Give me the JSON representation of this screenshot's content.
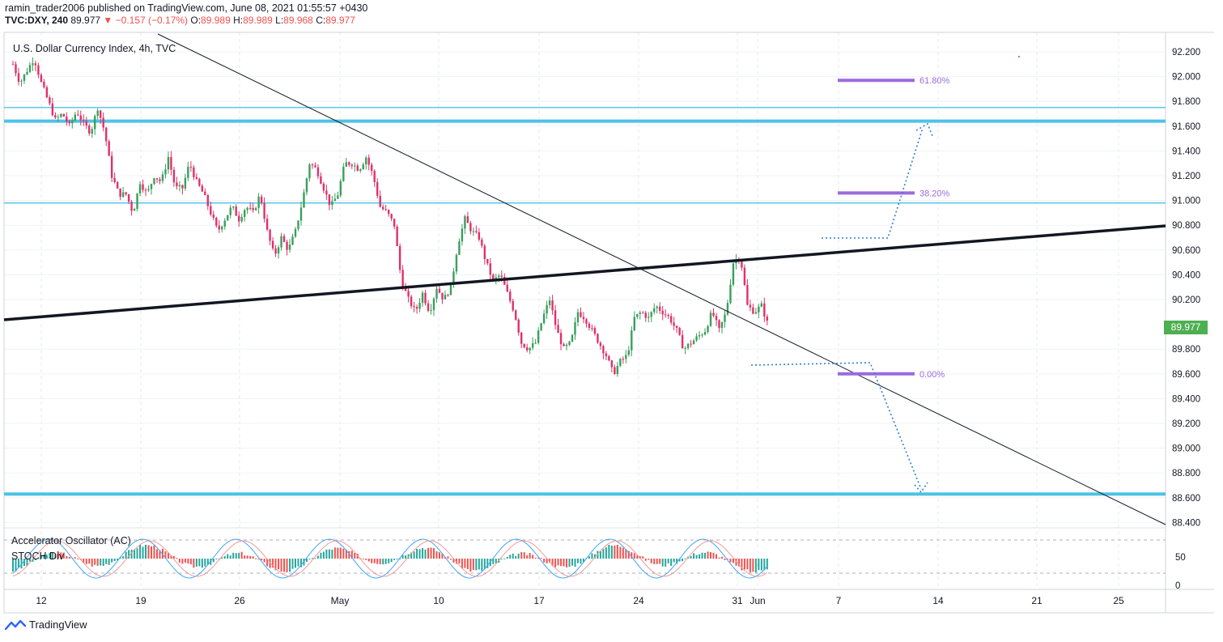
{
  "header": {
    "published_line": "ramin_trader2006 published on TradingView.com, June 08, 2021 01:55:57 +0430",
    "symbol": "TVC:DXY, 240",
    "last": "89.977",
    "change": "▼ −0.157 (−0.17%)",
    "o_label": "O:",
    "o": "89.989",
    "h_label": "H:",
    "h": "89.989",
    "l_label": "L:",
    "l": "89.968",
    "c_label": "C:",
    "c": "89.977"
  },
  "symbol_title": "U.S. Dollar Currency Index, 4h, TVC",
  "last_price_tag": "89.977",
  "indicators": {
    "ac_label": "Accelerator Oscillator (AC)",
    "stoch_label": "STOCH Div"
  },
  "footer": {
    "brand": "TradingView"
  },
  "colors": {
    "up": "#26a69a",
    "down": "#ef5350",
    "candle_up": "#3a9f5b",
    "candle_down": "#e0306a",
    "hline": "#4cc3e6",
    "fib": "#9c6ade",
    "path": "#2f7fd1",
    "price_tag": "#4caf50"
  },
  "chart_data": {
    "type": "candlestick",
    "y_axis_ticks": [
      "92.200",
      "92.000",
      "91.800",
      "91.600",
      "91.400",
      "91.200",
      "91.000",
      "90.800",
      "90.600",
      "90.400",
      "90.200",
      "89.800",
      "89.600",
      "89.400",
      "89.200",
      "89.000",
      "88.800",
      "88.600",
      "88.400"
    ],
    "x_axis_ticks": [
      "12",
      "19",
      "26",
      "May",
      "10",
      "17",
      "24",
      "31",
      "Jun",
      "7",
      "14",
      "21",
      "25"
    ],
    "ylim": [
      88.35,
      92.35
    ],
    "indicator_ticks": [
      "50",
      "0"
    ],
    "horizontal_levels": [
      91.75,
      91.64,
      90.98,
      88.63
    ],
    "fibonacci": [
      {
        "label": "61.80%",
        "value": 91.97
      },
      {
        "label": "38.20%",
        "value": 91.06
      },
      {
        "label": "0.00%",
        "value": 89.6
      }
    ],
    "close_path": [
      [
        12,
        92.1
      ],
      [
        12.5,
        91.95
      ],
      [
        13,
        92.05
      ],
      [
        13.5,
        92.15
      ],
      [
        14,
        91.95
      ],
      [
        14.5,
        91.8
      ],
      [
        15,
        91.65
      ],
      [
        15.5,
        91.7
      ],
      [
        16,
        91.6
      ],
      [
        16.5,
        91.72
      ],
      [
        17,
        91.62
      ],
      [
        17.5,
        91.55
      ],
      [
        18,
        91.75
      ],
      [
        18.5,
        91.55
      ],
      [
        19,
        91.2
      ],
      [
        19.5,
        91.05
      ],
      [
        20,
        91.05
      ],
      [
        20.5,
        90.9
      ],
      [
        21,
        91.15
      ],
      [
        21.5,
        91.05
      ],
      [
        22,
        91.2
      ],
      [
        22.5,
        91.15
      ],
      [
        23,
        91.35
      ],
      [
        23.5,
        91.1
      ],
      [
        24,
        91.1
      ],
      [
        24.5,
        91.3
      ],
      [
        25,
        91.15
      ],
      [
        25.5,
        91.05
      ],
      [
        26,
        90.9
      ],
      [
        26.5,
        90.75
      ],
      [
        27,
        90.85
      ],
      [
        27.5,
        90.95
      ],
      [
        28,
        90.85
      ],
      [
        28.5,
        90.95
      ],
      [
        29,
        90.9
      ],
      [
        29.5,
        91.05
      ],
      [
        30,
        90.75
      ],
      [
        30.5,
        90.55
      ],
      [
        31,
        90.7
      ],
      [
        31.5,
        90.6
      ],
      [
        32,
        90.75
      ],
      [
        32.5,
        91.0
      ],
      [
        33,
        91.3
      ],
      [
        33.5,
        91.25
      ],
      [
        34,
        91.1
      ],
      [
        34.5,
        90.95
      ],
      [
        35,
        91.05
      ],
      [
        35.5,
        91.3
      ],
      [
        36,
        91.3
      ],
      [
        36.5,
        91.25
      ],
      [
        37,
        91.35
      ],
      [
        37.5,
        91.2
      ],
      [
        38,
        90.95
      ],
      [
        38.5,
        90.9
      ],
      [
        39,
        90.8
      ],
      [
        39.5,
        90.35
      ],
      [
        40,
        90.2
      ],
      [
        40.5,
        90.1
      ],
      [
        41,
        90.25
      ],
      [
        41.5,
        90.1
      ],
      [
        42,
        90.3
      ],
      [
        42.5,
        90.2
      ],
      [
        43,
        90.3
      ],
      [
        43.5,
        90.65
      ],
      [
        44,
        90.85
      ],
      [
        44.5,
        90.75
      ],
      [
        45,
        90.7
      ],
      [
        45.5,
        90.5
      ],
      [
        46,
        90.35
      ],
      [
        46.5,
        90.4
      ],
      [
        47,
        90.25
      ],
      [
        47.5,
        90.1
      ],
      [
        48,
        89.85
      ],
      [
        48.5,
        89.8
      ],
      [
        49,
        89.85
      ],
      [
        49.5,
        90.05
      ],
      [
        50,
        90.2
      ],
      [
        50.5,
        89.95
      ],
      [
        51,
        89.8
      ],
      [
        51.5,
        89.85
      ],
      [
        52,
        90.1
      ],
      [
        52.5,
        90.05
      ],
      [
        53,
        89.95
      ],
      [
        53.5,
        89.85
      ],
      [
        54,
        89.75
      ],
      [
        54.5,
        89.6
      ],
      [
        55,
        89.7
      ],
      [
        55.5,
        89.75
      ],
      [
        56,
        90.05
      ],
      [
        56.5,
        90.1
      ],
      [
        57,
        90.05
      ],
      [
        57.5,
        90.15
      ],
      [
        58,
        90.1
      ],
      [
        58.5,
        90.05
      ],
      [
        59,
        89.95
      ],
      [
        59.5,
        89.8
      ],
      [
        60,
        89.85
      ],
      [
        60.5,
        89.9
      ],
      [
        61,
        89.95
      ],
      [
        61.5,
        90.1
      ],
      [
        62,
        89.95
      ],
      [
        62.5,
        90.1
      ],
      [
        63,
        90.5
      ],
      [
        63.5,
        90.55
      ],
      [
        64,
        90.15
      ],
      [
        64.5,
        90.1
      ],
      [
        65,
        90.15
      ],
      [
        65.5,
        89.98
      ]
    ]
  }
}
